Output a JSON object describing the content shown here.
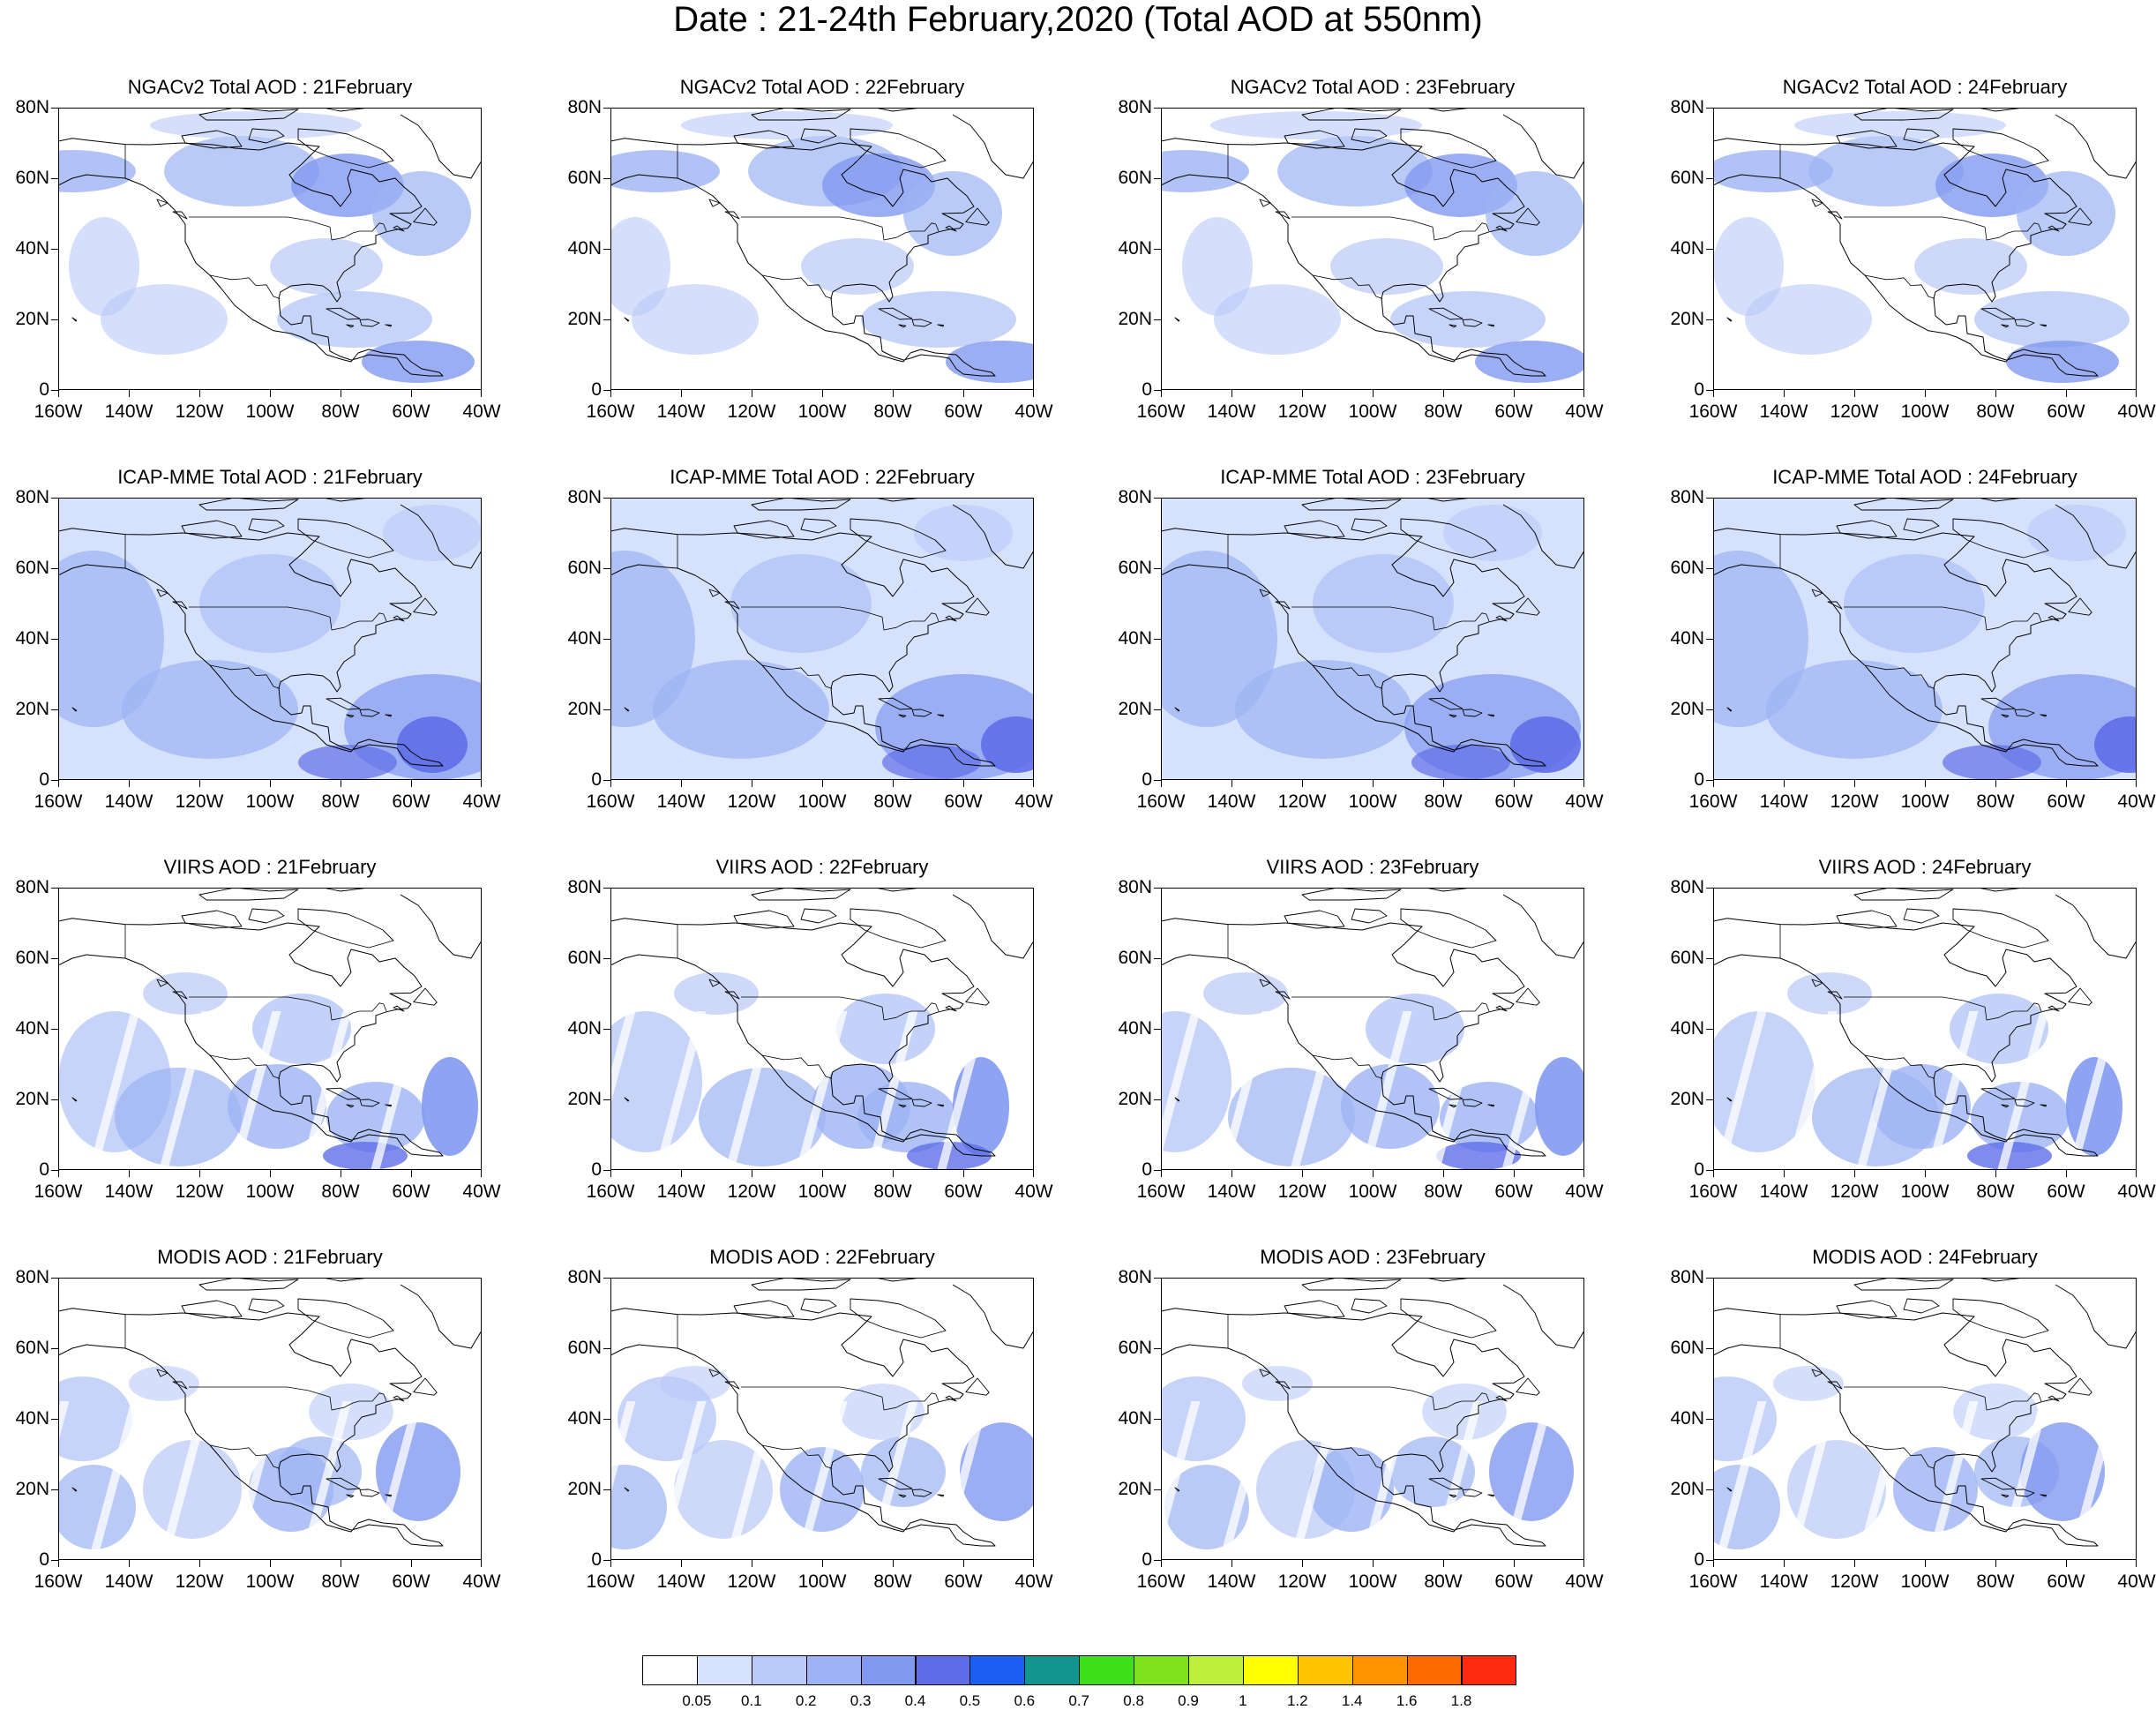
{
  "title": "Date : 21-24th February,2020 (Total AOD at 550nm)",
  "rows": [
    {
      "source": "NGACv2",
      "panels": [
        {
          "title": "NGACv2 Total AOD : 21February"
        },
        {
          "title": "NGACv2 Total AOD : 22February"
        },
        {
          "title": "NGACv2 Total AOD : 23February"
        },
        {
          "title": "NGACv2 Total AOD : 24February"
        }
      ]
    },
    {
      "source": "ICAP-MME",
      "panels": [
        {
          "title": "ICAP-MME Total AOD : 21February"
        },
        {
          "title": "ICAP-MME Total AOD : 22February"
        },
        {
          "title": "ICAP-MME Total AOD : 23February"
        },
        {
          "title": "ICAP-MME Total AOD : 24February"
        }
      ]
    },
    {
      "source": "VIIRS",
      "panels": [
        {
          "title": "VIIRS AOD : 21February"
        },
        {
          "title": "VIIRS AOD : 22February"
        },
        {
          "title": "VIIRS AOD : 23February"
        },
        {
          "title": "VIIRS AOD : 24February"
        }
      ]
    },
    {
      "source": "MODIS",
      "panels": [
        {
          "title": "MODIS AOD : 21February"
        },
        {
          "title": "MODIS AOD : 22February"
        },
        {
          "title": "MODIS AOD : 23February"
        },
        {
          "title": "MODIS AOD : 24February"
        }
      ]
    }
  ],
  "axes": {
    "lat_labels": [
      "80N",
      "60N",
      "40N",
      "20N",
      "0"
    ],
    "lon_labels": [
      "160W",
      "140W",
      "120W",
      "100W",
      "80W",
      "60W",
      "40W"
    ]
  },
  "colorbar": {
    "labels": [
      "0.05",
      "0.1",
      "0.2",
      "0.3",
      "0.4",
      "0.5",
      "0.6",
      "0.7",
      "0.8",
      "0.9",
      "1",
      "1.2",
      "1.4",
      "1.6",
      "1.8"
    ],
    "colors": [
      "#ffffff",
      "#d6e1fc",
      "#b9c9f8",
      "#9db3f4",
      "#8299f0",
      "#5f6ee8",
      "#1a5ff2",
      "#12958f",
      "#3ee01c",
      "#7ee21b",
      "#bdf03a",
      "#ffff00",
      "#ffc400",
      "#ff9400",
      "#ff6a00",
      "#ff2a10"
    ]
  }
}
